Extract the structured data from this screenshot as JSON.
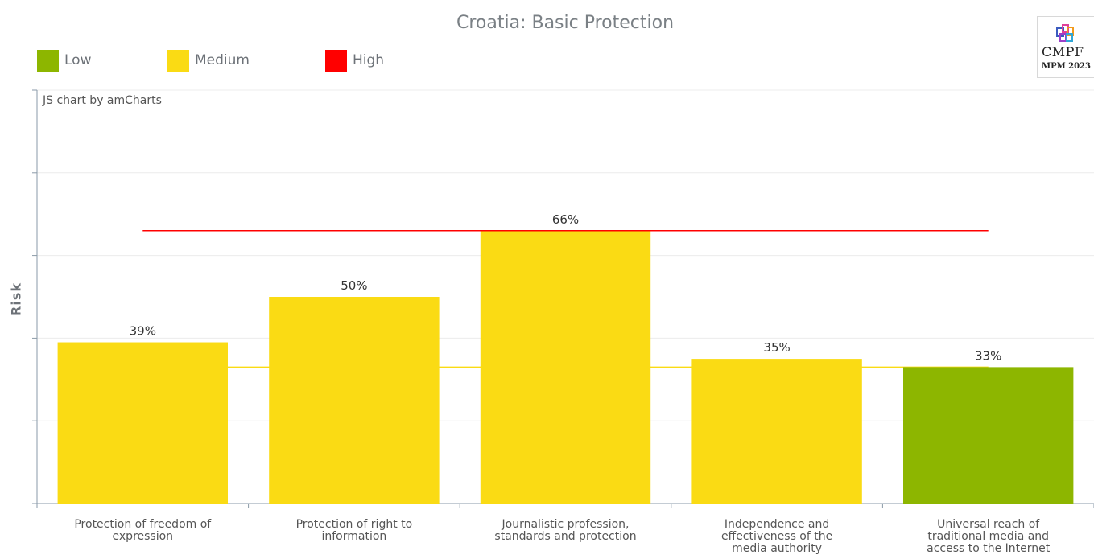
{
  "chart_data": {
    "type": "bar",
    "title": "Croatia: Basic Protection",
    "ylabel": "Risk",
    "xlabel": "",
    "ylim": [
      0,
      100
    ],
    "credit": "JS chart by amCharts",
    "grid": true,
    "legend_position": "top-left",
    "legend": [
      {
        "label": "Low",
        "color": "#8db600"
      },
      {
        "label": "Medium",
        "color": "#fadb14"
      },
      {
        "label": "High",
        "color": "#ff0000"
      }
    ],
    "categories": [
      [
        "Protection of freedom of",
        "expression"
      ],
      [
        "Protection of right to",
        "information"
      ],
      [
        "Journalistic profession,",
        "standards and protection"
      ],
      [
        "Independence and",
        "effectiveness of the",
        "media authority"
      ],
      [
        "Universal reach of",
        "traditional media and",
        "access to the Internet"
      ]
    ],
    "values": [
      39,
      50,
      66,
      35,
      33
    ],
    "value_labels": [
      "39%",
      "50%",
      "66%",
      "35%",
      "33%"
    ],
    "risk_levels": [
      "Medium",
      "Medium",
      "Medium",
      "Medium",
      "Low"
    ],
    "reference_lines": [
      {
        "value": 66,
        "color": "#ff0000"
      },
      {
        "value": 33,
        "color": "#fadb14"
      }
    ]
  },
  "logo": {
    "text": "CMPF",
    "sub": "MPM 2023"
  }
}
